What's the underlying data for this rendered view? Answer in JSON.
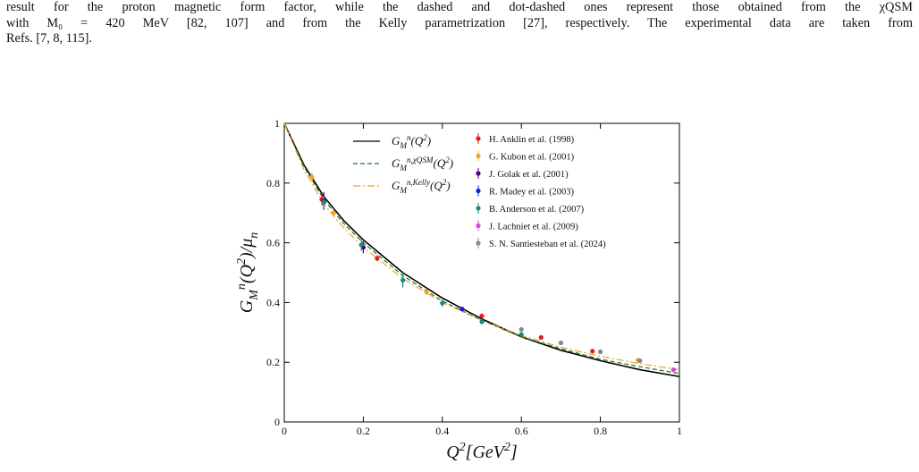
{
  "text_lines": [
    "result for the proton magnetic form factor, while the dashed and dot-dashed ones represent those obtained from the χQSM",
    "with M₀ = 420 MeV [82, 107] and from the Kelly parametrization [27], respectively. The experimental data are taken from",
    "Refs. [7, 8, 115]."
  ],
  "chart_data": {
    "type": "line",
    "x_label": "Q^2[GeV^2]",
    "y_label": "G_M^n(Q^2)/μ_n",
    "xlim": [
      0,
      1
    ],
    "ylim": [
      0,
      1
    ],
    "xticks": [
      0,
      0.2,
      0.4,
      0.6,
      0.8,
      1
    ],
    "yticks": [
      0,
      0.2,
      0.4,
      0.6,
      0.8,
      1
    ],
    "x": [
      0,
      0.05,
      0.1,
      0.15,
      0.2,
      0.3,
      0.4,
      0.5,
      0.6,
      0.7,
      0.8,
      0.9,
      1.0
    ],
    "series": [
      {
        "name": "G_M^n(Q^2)",
        "color": "#000000",
        "style": "solid",
        "values": [
          1,
          0.86,
          0.755,
          0.675,
          0.61,
          0.5,
          0.415,
          0.345,
          0.285,
          0.24,
          0.205,
          0.175,
          0.152
        ]
      },
      {
        "name": "G_M^{n,χQSM}(Q^2)",
        "color": "#1a7a1a",
        "style": "dashed",
        "values": [
          1,
          0.855,
          0.745,
          0.665,
          0.6,
          0.49,
          0.405,
          0.34,
          0.285,
          0.245,
          0.21,
          0.185,
          0.162
        ]
      },
      {
        "name": "G_M^{n,Kelly}(Q^2)",
        "color": "#f0a030",
        "style": "dashdot",
        "values": [
          1,
          0.845,
          0.73,
          0.65,
          0.585,
          0.48,
          0.4,
          0.34,
          0.29,
          0.25,
          0.22,
          0.195,
          0.175
        ]
      }
    ],
    "data_sets": [
      {
        "name": "H. Anklin et al. (1998)",
        "color": "#e41a1c",
        "x": [
          0.095,
          0.235,
          0.5,
          0.65,
          0.78
        ],
        "values": [
          0.745,
          0.548,
          0.355,
          0.283,
          0.237
        ],
        "errors": [
          0.02,
          0.01,
          0.008,
          0.007,
          0.007
        ]
      },
      {
        "name": "G. Kubon et al. (2001)",
        "color": "#f5a030",
        "x": [
          0.07,
          0.125,
          0.36,
          0.895
        ],
        "values": [
          0.82,
          0.7,
          0.435,
          0.207
        ],
        "errors": [
          0.015,
          0.012,
          0.01,
          0.006
        ]
      },
      {
        "name": "J. Golak et al. (2001)",
        "color": "#4b0082",
        "x": [
          0.1,
          0.2
        ],
        "values": [
          0.74,
          0.585
        ],
        "errors": [
          0.03,
          0.02
        ]
      },
      {
        "name": "R. Madey et al. (2003)",
        "color": "#1020d0",
        "x": [
          0.45
        ],
        "values": [
          0.378
        ],
        "errors": [
          0.008
        ]
      },
      {
        "name": "B. Anderson et al. (2007)",
        "color": "#1a8a7a",
        "x": [
          0.1,
          0.195,
          0.3,
          0.4,
          0.5,
          0.6
        ],
        "values": [
          0.735,
          0.593,
          0.475,
          0.398,
          0.336,
          0.293
        ],
        "errors": [
          0.02,
          0.02,
          0.025,
          0.012,
          0.01,
          0.008
        ]
      },
      {
        "name": "J. Lachniet et al. (2009)",
        "color": "#e040e0",
        "x": [
          0.985
        ],
        "values": [
          0.175
        ],
        "errors": [
          0.005
        ]
      },
      {
        "name": "S. N. Santiesteban et al. (2024)",
        "color": "#888888",
        "x": [
          0.6,
          0.7,
          0.8,
          0.9
        ],
        "values": [
          0.31,
          0.265,
          0.235,
          0.205
        ],
        "errors": [
          0.008,
          0.006,
          0.005,
          0.005
        ]
      }
    ]
  }
}
